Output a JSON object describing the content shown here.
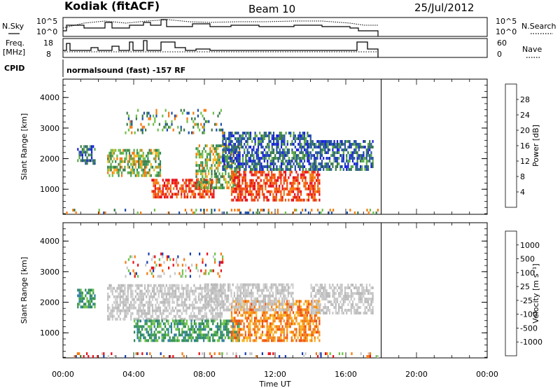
{
  "header": {
    "title": "Kodiak (fitACF)",
    "beam": "Beam 10",
    "date": "25/Jul/2012",
    "nsky_label": "N.Sky",
    "nsearch_label": "N.Search",
    "freq_label": "Freq.",
    "freq_unit": "[MHz]",
    "nave_label": "Nave",
    "cpid_label": "CPID",
    "cpid_value": "normalsound (fast) -157 RF",
    "noise_ticks_left": [
      "10^5",
      "10^0"
    ],
    "noise_ticks_right": [
      "10^5",
      "10^0"
    ],
    "freq_ticks": [
      "18",
      "8"
    ],
    "nave_ticks": [
      "60",
      "0"
    ]
  },
  "chart_data": [
    {
      "type": "heatmap",
      "title": "",
      "xlabel": "Time UT",
      "ylabel": "Slant Range [km]",
      "x_ticks": [
        "00:00",
        "04:00",
        "08:00",
        "12:00",
        "16:00",
        "20:00",
        "00:00"
      ],
      "xlim_hours": [
        0,
        24
      ],
      "y_ticks": [
        1000,
        2000,
        3000,
        4000
      ],
      "ylim_km": [
        180,
        4600
      ],
      "data_end_hour": 18.0,
      "colorbar_label": "Power [dB]",
      "colorbar_ticks": [
        "28",
        "24",
        "20",
        "16",
        "12",
        "8",
        "4"
      ],
      "colorbar_colors": [
        "#e8101a",
        "#f04010",
        "#f57a10",
        "#f8b520",
        "#5aa84a",
        "#3a7a4a",
        "#1f4fa5",
        "#1a20e0"
      ],
      "regions": [
        {
          "t0": 0.8,
          "t1": 1.8,
          "r0": 1800,
          "r1": 2400,
          "level": "low"
        },
        {
          "t0": 2.5,
          "t1": 5.5,
          "r0": 1400,
          "r1": 2300,
          "level": "mid"
        },
        {
          "t0": 5.0,
          "t1": 8.5,
          "r0": 700,
          "r1": 1300,
          "level": "high"
        },
        {
          "t0": 7.5,
          "t1": 10.0,
          "r0": 1000,
          "r1": 2400,
          "level": "mid"
        },
        {
          "t0": 9.5,
          "t1": 14.5,
          "r0": 600,
          "r1": 1600,
          "level": "high"
        },
        {
          "t0": 9.0,
          "t1": 14.0,
          "r0": 1600,
          "r1": 2800,
          "level": "low"
        },
        {
          "t0": 14.0,
          "t1": 17.5,
          "r0": 1600,
          "r1": 2600,
          "level": "low"
        },
        {
          "t0": 3.5,
          "t1": 9.0,
          "r0": 2800,
          "r1": 3600,
          "level": "sparse"
        },
        {
          "t0": 0.0,
          "t1": 18.0,
          "r0": 180,
          "r1": 350,
          "level": "sparse"
        }
      ]
    },
    {
      "type": "heatmap",
      "title": "",
      "xlabel": "Time UT",
      "ylabel": "Slant Range [km]",
      "x_ticks": [
        "00:00",
        "04:00",
        "08:00",
        "12:00",
        "16:00",
        "20:00",
        "00:00"
      ],
      "xlim_hours": [
        0,
        24
      ],
      "y_ticks": [
        1000,
        2000,
        3000,
        4000
      ],
      "ylim_km": [
        180,
        4600
      ],
      "data_end_hour": 18.0,
      "colorbar_label": "Velocity [m s⁻¹]",
      "colorbar_ticks": [
        "1000",
        "500",
        "100",
        "25",
        "-25",
        "-100",
        "-500",
        "-1000"
      ],
      "colorbar_colors": [
        "#1a3fb0",
        "#2f7f9f",
        "#2e8a5a",
        "#6fc24a",
        "#c8c8c8",
        "#f8b520",
        "#f57a10",
        "#f05010",
        "#e8101a"
      ],
      "regions": [
        {
          "t0": 0.8,
          "t1": 1.8,
          "r0": 1800,
          "r1": 2400,
          "level": "pos"
        },
        {
          "t0": 2.5,
          "t1": 9.0,
          "r0": 1400,
          "r1": 2500,
          "level": "zero"
        },
        {
          "t0": 4.0,
          "t1": 10.0,
          "r0": 700,
          "r1": 1400,
          "level": "pos"
        },
        {
          "t0": 9.5,
          "t1": 14.5,
          "r0": 700,
          "r1": 2000,
          "level": "neg"
        },
        {
          "t0": 8.0,
          "t1": 13.0,
          "r0": 1700,
          "r1": 2600,
          "level": "zero"
        },
        {
          "t0": 14.0,
          "t1": 17.5,
          "r0": 1600,
          "r1": 2600,
          "level": "zero"
        },
        {
          "t0": 3.5,
          "t1": 9.0,
          "r0": 2800,
          "r1": 3600,
          "level": "sparse"
        },
        {
          "t0": 0.0,
          "t1": 18.0,
          "r0": 180,
          "r1": 350,
          "level": "sparse"
        }
      ]
    }
  ]
}
